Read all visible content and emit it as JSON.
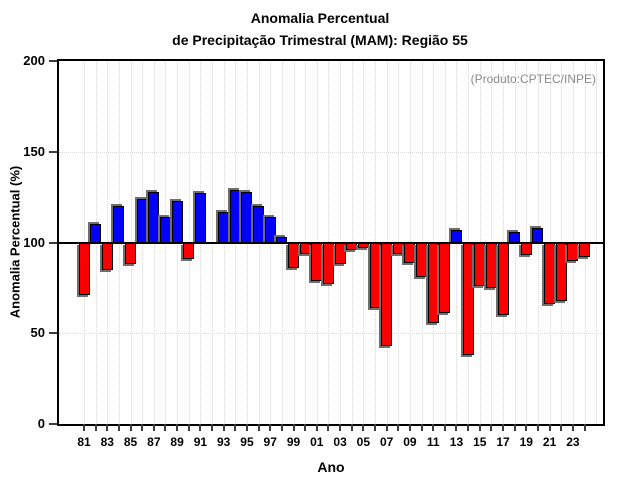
{
  "chart_data": {
    "type": "bar",
    "title_line1": "Anomalia Percentual",
    "title_line2": "de Precipitação Trimestral (MAM): Região 55",
    "annotation": "(Produto:CPTEC/INPE)",
    "xlabel": "Ano",
    "ylabel": "Anomalia Percentual (%)",
    "ylim": [
      0,
      200
    ],
    "yticks": [
      0,
      50,
      100,
      150,
      200
    ],
    "baseline": 100,
    "grid": "dotted",
    "legend": "none",
    "colors": {
      "above_baseline": "#0202fa",
      "below_baseline": "#fb0000",
      "bar_outline": "#000000",
      "bar_shadow": "#6f6f6f",
      "annotation_text": "#8a8a8a"
    },
    "x_tick_labels": [
      "81",
      "83",
      "85",
      "87",
      "89",
      "91",
      "93",
      "95",
      "97",
      "99",
      "01",
      "03",
      "05",
      "07",
      "09",
      "11",
      "13",
      "15",
      "17",
      "19",
      "21",
      "23"
    ],
    "years": [
      1981,
      1982,
      1983,
      1984,
      1985,
      1986,
      1987,
      1988,
      1989,
      1990,
      1991,
      1992,
      1993,
      1994,
      1995,
      1996,
      1997,
      1998,
      1999,
      2000,
      2001,
      2002,
      2003,
      2004,
      2005,
      2006,
      2007,
      2008,
      2009,
      2010,
      2011,
      2012,
      2013,
      2014,
      2015,
      2016,
      2017,
      2018,
      2019,
      2020,
      2021,
      2022,
      2023,
      2024
    ],
    "values": [
      72,
      110,
      86,
      120,
      89,
      124,
      128,
      114,
      123,
      92,
      127,
      100,
      117,
      129,
      128,
      120,
      114,
      103,
      87,
      95,
      80,
      78,
      89,
      97,
      98,
      65,
      44,
      95,
      90,
      82,
      57,
      62,
      107,
      39,
      77,
      76,
      61,
      106,
      94,
      108,
      67,
      69,
      91,
      93
    ]
  }
}
